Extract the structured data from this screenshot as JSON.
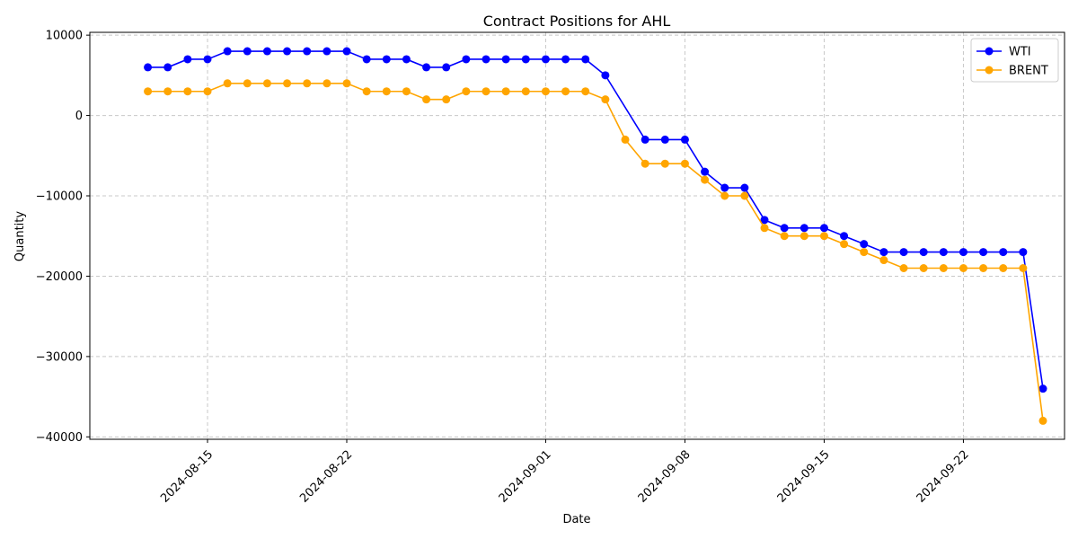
{
  "chart_data": {
    "type": "line",
    "title": "Contract Positions for AHL",
    "xlabel": "Date",
    "ylabel": "Quantity",
    "x": [
      "2024-08-12",
      "2024-08-13",
      "2024-08-14",
      "2024-08-15",
      "2024-08-16",
      "2024-08-17",
      "2024-08-18",
      "2024-08-19",
      "2024-08-20",
      "2024-08-21",
      "2024-08-22",
      "2024-08-23",
      "2024-08-24",
      "2024-08-25",
      "2024-08-26",
      "2024-08-27",
      "2024-08-28",
      "2024-08-29",
      "2024-08-30",
      "2024-08-31",
      "2024-09-01",
      "2024-09-02",
      "2024-09-03",
      "2024-09-04",
      "2024-09-05",
      "2024-09-06",
      "2024-09-07",
      "2024-09-08",
      "2024-09-09",
      "2024-09-10",
      "2024-09-11",
      "2024-09-12",
      "2024-09-13",
      "2024-09-14",
      "2024-09-15",
      "2024-09-16",
      "2024-09-17",
      "2024-09-18",
      "2024-09-19",
      "2024-09-20",
      "2024-09-21",
      "2024-09-22",
      "2024-09-23",
      "2024-09-24",
      "2024-09-25",
      "2024-09-26"
    ],
    "series": [
      {
        "name": "WTI",
        "color": "#0000ff",
        "values": [
          6000,
          6000,
          7000,
          7000,
          8000,
          8000,
          8000,
          8000,
          8000,
          8000,
          8000,
          7000,
          7000,
          7000,
          6000,
          6000,
          7000,
          7000,
          7000,
          7000,
          7000,
          7000,
          7000,
          5000,
          null,
          -3000,
          -3000,
          -3000,
          -7000,
          -9000,
          -9000,
          -13000,
          -14000,
          -14000,
          -14000,
          -15000,
          -16000,
          -17000,
          -17000,
          -17000,
          -17000,
          -17000,
          -17000,
          -17000,
          -17000,
          -34000
        ]
      },
      {
        "name": "BRENT",
        "color": "#ffa500",
        "values": [
          3000,
          3000,
          3000,
          3000,
          4000,
          4000,
          4000,
          4000,
          4000,
          4000,
          4000,
          3000,
          3000,
          3000,
          2000,
          2000,
          3000,
          3000,
          3000,
          3000,
          3000,
          3000,
          3000,
          2000,
          -3000,
          -6000,
          -6000,
          -6000,
          -8000,
          -10000,
          -10000,
          -14000,
          -15000,
          -15000,
          -15000,
          -16000,
          -17000,
          -18000,
          -19000,
          -19000,
          -19000,
          -19000,
          -19000,
          -19000,
          -19000,
          -38000
        ]
      }
    ],
    "x_ticks": [
      "2024-08-15",
      "2024-08-22",
      "2024-09-01",
      "2024-09-08",
      "2024-09-15",
      "2024-09-22"
    ],
    "y_ticks": [
      10000,
      0,
      -10000,
      -20000,
      -30000,
      -40000
    ],
    "y_tick_labels": [
      "10000",
      "0",
      "−10000",
      "−20000",
      "−30000",
      "−40000"
    ],
    "x_range": [
      "2024-08-09T02:00",
      "2024-09-27T02:00"
    ],
    "ylim": [
      -40300,
      10350
    ],
    "grid": true,
    "legend_position": "top-right"
  }
}
